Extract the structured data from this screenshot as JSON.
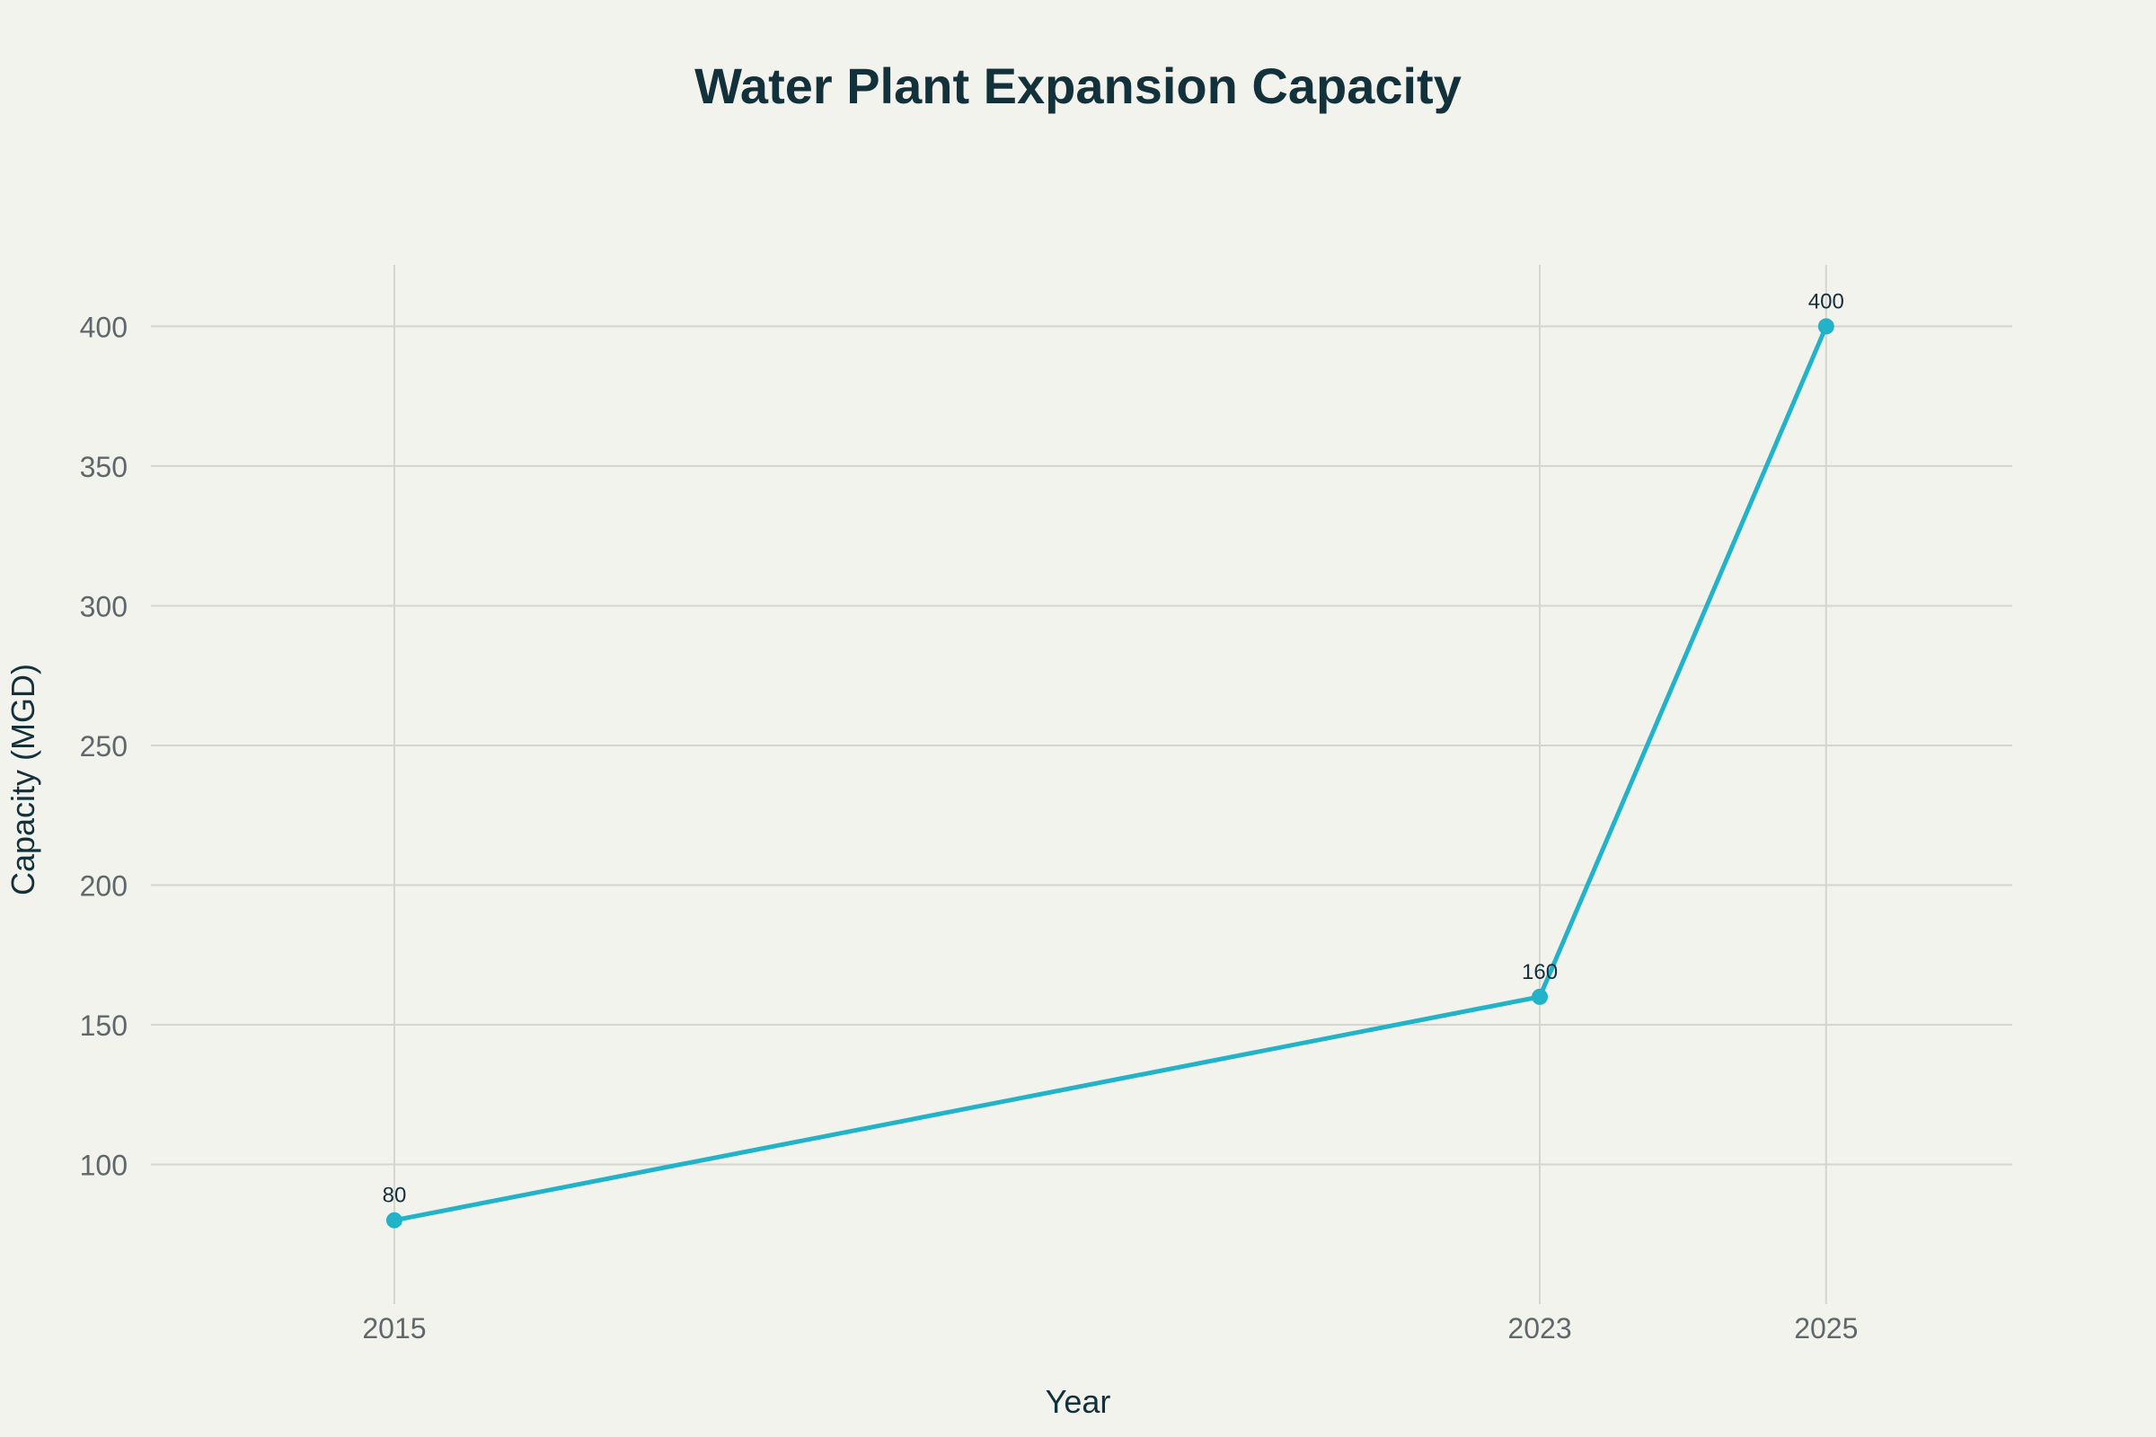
{
  "chart_data": {
    "type": "line",
    "title": "Water Plant Expansion Capacity",
    "xlabel": "Year",
    "ylabel": "Capacity (MGD)",
    "x": [
      2015,
      2023,
      2025
    ],
    "x_tick_labels": [
      "2015",
      "2023",
      "2025"
    ],
    "y_ticks": [
      100,
      150,
      200,
      250,
      300,
      350,
      400
    ],
    "ylim": [
      50,
      422
    ],
    "xlim": [
      2013.3,
      2026.3
    ],
    "grid": true,
    "series": [
      {
        "values": [
          80,
          160,
          400
        ],
        "data_labels": [
          "80",
          "160",
          "400"
        ],
        "color": "#22b3c8"
      }
    ]
  }
}
